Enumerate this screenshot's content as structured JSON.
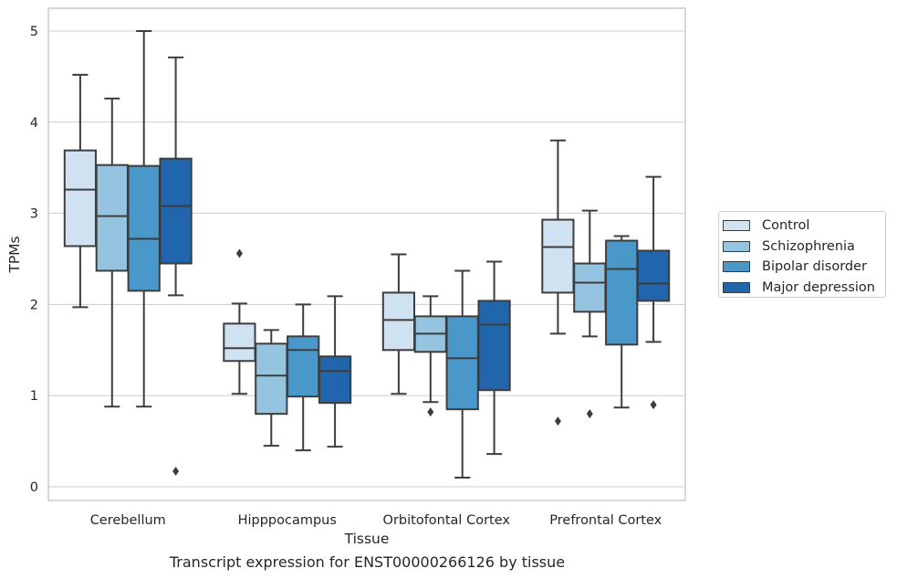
{
  "chart_data": {
    "type": "box",
    "title": "",
    "xlabel": "Tissue",
    "ylabel": "TPMs",
    "caption": "Transcript expression for ENST00000266126 by tissue",
    "categories": [
      "Cerebellum",
      "Hipppocampus",
      "Orbitofontal Cortex",
      "Prefrontal Cortex"
    ],
    "ylim": [
      -0.15,
      5.25
    ],
    "yticks": [
      0,
      1,
      2,
      3,
      4,
      5
    ],
    "grid": true,
    "legend_position": "right",
    "series": [
      {
        "name": "Control",
        "color": "#d0e1f2",
        "boxes": [
          {
            "whisker_low": 1.97,
            "q1": 2.64,
            "median": 3.26,
            "q3": 3.69,
            "whisker_high": 4.52,
            "outliers": []
          },
          {
            "whisker_low": 1.02,
            "q1": 1.38,
            "median": 1.52,
            "q3": 1.79,
            "whisker_high": 2.01,
            "outliers": [
              2.56
            ]
          },
          {
            "whisker_low": 1.02,
            "q1": 1.5,
            "median": 1.83,
            "q3": 2.13,
            "whisker_high": 2.55,
            "outliers": []
          },
          {
            "whisker_low": 1.68,
            "q1": 2.13,
            "median": 2.63,
            "q3": 2.93,
            "whisker_high": 3.8,
            "outliers": [
              0.72
            ]
          }
        ]
      },
      {
        "name": "Schizophrenia",
        "color": "#94c4df",
        "boxes": [
          {
            "whisker_low": 0.88,
            "q1": 2.37,
            "median": 2.97,
            "q3": 3.53,
            "whisker_high": 4.26,
            "outliers": []
          },
          {
            "whisker_low": 0.45,
            "q1": 0.8,
            "median": 1.22,
            "q3": 1.57,
            "whisker_high": 1.72,
            "outliers": []
          },
          {
            "whisker_low": 0.93,
            "q1": 1.48,
            "median": 1.68,
            "q3": 1.87,
            "whisker_high": 2.09,
            "outliers": [
              0.82
            ]
          },
          {
            "whisker_low": 1.65,
            "q1": 1.92,
            "median": 2.24,
            "q3": 2.45,
            "whisker_high": 3.03,
            "outliers": [
              0.8
            ]
          }
        ]
      },
      {
        "name": "Bipolar disorder",
        "color": "#4a98c9",
        "boxes": [
          {
            "whisker_low": 0.88,
            "q1": 2.15,
            "median": 2.72,
            "q3": 3.52,
            "whisker_high": 5.0,
            "outliers": []
          },
          {
            "whisker_low": 0.4,
            "q1": 0.99,
            "median": 1.5,
            "q3": 1.65,
            "whisker_high": 2.0,
            "outliers": []
          },
          {
            "whisker_low": 0.1,
            "q1": 0.85,
            "median": 1.41,
            "q3": 1.87,
            "whisker_high": 2.37,
            "outliers": []
          },
          {
            "whisker_low": 0.87,
            "q1": 1.56,
            "median": 2.39,
            "q3": 2.7,
            "whisker_high": 2.75,
            "outliers": []
          }
        ]
      },
      {
        "name": "Major depression",
        "color": "#2166ac",
        "boxes": [
          {
            "whisker_low": 2.1,
            "q1": 2.45,
            "median": 3.08,
            "q3": 3.6,
            "whisker_high": 4.71,
            "outliers": [
              0.17
            ]
          },
          {
            "whisker_low": 0.44,
            "q1": 0.92,
            "median": 1.27,
            "q3": 1.43,
            "whisker_high": 2.09,
            "outliers": []
          },
          {
            "whisker_low": 0.36,
            "q1": 1.06,
            "median": 1.78,
            "q3": 2.04,
            "whisker_high": 2.47,
            "outliers": []
          },
          {
            "whisker_low": 1.59,
            "q1": 2.04,
            "median": 2.23,
            "q3": 2.59,
            "whisker_high": 3.4,
            "outliers": [
              0.9
            ]
          }
        ]
      }
    ]
  }
}
